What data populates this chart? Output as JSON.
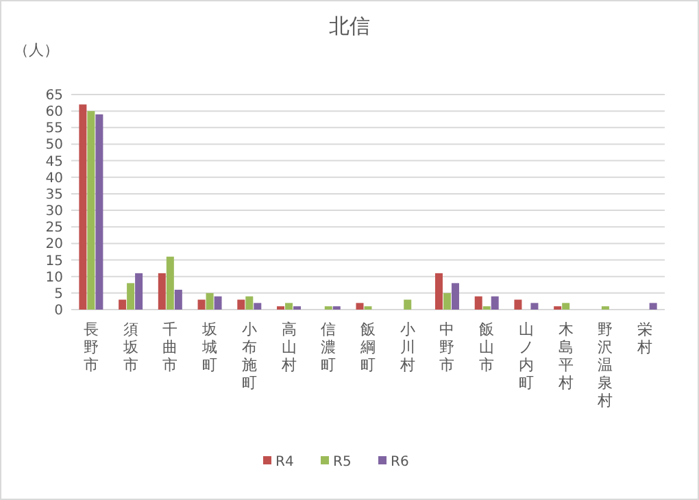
{
  "chart_data": {
    "type": "bar",
    "title": "北信",
    "ylabel": "（人）",
    "categories": [
      "長野市",
      "須坂市",
      "千曲市",
      "坂城町",
      "小布施町",
      "高山村",
      "信濃町",
      "飯綱町",
      "小川村",
      "中野市",
      "飯山市",
      "山ノ内町",
      "木島平村",
      "野沢温泉村",
      "栄村"
    ],
    "series": [
      {
        "name": "R4",
        "color": "#c0504d",
        "values": [
          62,
          3,
          11,
          3,
          3,
          1,
          0,
          2,
          0,
          11,
          4,
          3,
          1,
          0,
          0
        ]
      },
      {
        "name": "R5",
        "color": "#9bbb59",
        "values": [
          60,
          8,
          16,
          5,
          4,
          2,
          1,
          1,
          3,
          5,
          1,
          0,
          2,
          1,
          0
        ]
      },
      {
        "name": "R6",
        "color": "#8064a2",
        "values": [
          59,
          11,
          6,
          4,
          2,
          1,
          1,
          0,
          0,
          8,
          4,
          2,
          0,
          0,
          2
        ]
      }
    ],
    "ylim": [
      0,
      65
    ],
    "yticks": [
      0,
      5,
      10,
      15,
      20,
      25,
      30,
      35,
      40,
      45,
      50,
      55,
      60,
      65
    ],
    "grid": "y",
    "legend": "bottom"
  }
}
